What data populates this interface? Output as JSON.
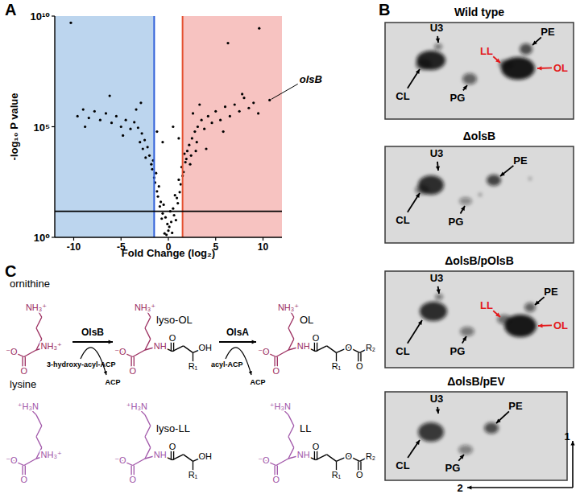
{
  "panel_labels": [
    "A",
    "B",
    "C"
  ],
  "chart_data": {
    "type": "scatter",
    "x_label": "Fold Change (log₂)",
    "y_label": "-log₁₀ P value",
    "log": "y",
    "grid": false,
    "color": "#000000",
    "marker": "circle",
    "xlim": [
      -12,
      12
    ],
    "ylim": [
      1,
      10000000000.0
    ],
    "xticks": [
      -10,
      -5,
      0,
      5,
      10
    ],
    "yticks": [
      {
        "value": 1,
        "label": "10⁰"
      },
      {
        "value": 100000.0,
        "label": "10⁵"
      },
      {
        "value": 10000000000.0,
        "label": "10¹⁰"
      }
    ],
    "thresholds": [
      {
        "axis": "x",
        "value": -1.5,
        "color": "#2f5fd8",
        "fill": "#bcd5ee"
      },
      {
        "axis": "x",
        "value": 1.5,
        "color": "#e4502f",
        "fill": "#f7c3c1"
      },
      {
        "axis": "y",
        "value": 15,
        "color": "#000000"
      }
    ],
    "annotations": [
      {
        "text": "olsB",
        "x": 10.7,
        "y": 1600000.0
      }
    ],
    "x": [
      0.1,
      -0.3,
      0.5,
      -0.8,
      0.9,
      -1.2,
      1.3,
      -1.5,
      1.6,
      -1.8,
      1.9,
      0.2,
      -0.5,
      0.7,
      -1.0,
      1.1,
      -1.3,
      1.4,
      -1.6,
      1.7,
      0.0,
      0.3,
      -0.1,
      -0.6,
      0.6,
      -0.9,
      1.0,
      -1.1,
      1.2,
      -1.4,
      1.5,
      -1.7,
      1.8,
      -2.0,
      2.0,
      0.4,
      -0.4,
      0.8,
      -0.7,
      -0.2,
      0.5,
      -0.6,
      1.1,
      -1.2,
      2.2,
      2.5,
      2.8,
      3.1,
      2.4,
      3.0,
      3.5,
      3.8,
      4.2,
      4.6,
      5.0,
      5.5,
      6.0,
      6.5,
      7.0,
      7.5,
      8.0,
      8.5,
      9.0,
      9.5,
      4.0,
      5.8,
      2.6,
      3.3,
      7.8,
      6.3,
      9.6,
      10.7,
      2.3,
      2.9,
      -2.2,
      -2.5,
      -2.8,
      -3.2,
      -3.6,
      -4.0,
      -4.5,
      -5.0,
      -5.5,
      -6.0,
      -6.6,
      -7.2,
      -7.8,
      -8.4,
      -9.0,
      -9.6,
      -3.0,
      -4.8,
      -2.4,
      -2.7,
      -3.4,
      -2.9,
      -10.3,
      -6.2,
      -8.8
    ],
    "values": [
      3,
      8,
      20,
      40,
      60,
      120,
      250,
      500,
      900,
      2000,
      3500,
      15,
      30,
      80,
      200,
      400,
      800,
      1500,
      3000,
      6000,
      2,
      5,
      4,
      12,
      10,
      25,
      35,
      70,
      110,
      300,
      600,
      1200,
      2500,
      5000,
      8000,
      1.6,
      1.5,
      6,
      7,
      1.3,
      100000.0,
      20000.0,
      30000.0,
      60000.0,
      15000.0,
      30000.0,
      60000.0,
      100000.0,
      5000.0,
      20000.0,
      200000.0,
      80000.0,
      300000.0,
      150000.0,
      500000.0,
      200000.0,
      800000.0,
      300000.0,
      1000000.0,
      500000.0,
      2000000.0,
      700000.0,
      1200000.0,
      400000.0,
      10000.0,
      60000.0,
      400000.0,
      1000000.0,
      3000000.0,
      600000000.0,
      2800000000.0,
      1600000.0,
      2000.0,
      8000.0,
      12000.0,
      25000.0,
      50000.0,
      90000.0,
      160000.0,
      80000.0,
      200000.0,
      100000.0,
      300000.0,
      150000.0,
      400000.0,
      200000.0,
      500000.0,
      250000.0,
      600000.0,
      300000.0,
      20000.0,
      40000.0,
      4000.0,
      10000.0,
      600000.0,
      1200000.0,
      5000000000.0,
      2500000.0,
      100000.0
    ]
  },
  "tlc": {
    "plates": [
      {
        "title": "Wild type",
        "labels": [
          {
            "text": "U3"
          },
          {
            "text": "LL",
            "color": "#e31a1c"
          },
          {
            "text": "PE"
          },
          {
            "text": "OL",
            "color": "#e31a1c"
          },
          {
            "text": "CL"
          },
          {
            "text": "PG"
          }
        ]
      },
      {
        "title": "ΔolsB",
        "labels": [
          {
            "text": "U3"
          },
          {
            "text": "PE"
          },
          {
            "text": "CL"
          },
          {
            "text": "PG"
          }
        ]
      },
      {
        "title": "ΔolsB/pOlsB",
        "labels": [
          {
            "text": "U3"
          },
          {
            "text": "LL",
            "color": "#e31a1c"
          },
          {
            "text": "PE"
          },
          {
            "text": "OL",
            "color": "#e31a1c"
          },
          {
            "text": "CL"
          },
          {
            "text": "PG"
          }
        ]
      },
      {
        "title": "ΔolsB/pEV",
        "labels": [
          {
            "text": "U3"
          },
          {
            "text": "PE"
          },
          {
            "text": "CL"
          },
          {
            "text": "PG"
          }
        ]
      }
    ],
    "directions": [
      "1",
      "2"
    ]
  },
  "scheme": {
    "molecules": [
      {
        "name": "ornithine",
        "color": "#9b2d5f",
        "atoms": [
          "NH₃⁺",
          "NH₃⁺",
          "⁻O",
          "O"
        ]
      },
      {
        "name": "lysine",
        "color": "#a055a8",
        "atoms": [
          "⁺H₃N",
          "NH₃⁺",
          "⁻O",
          "O"
        ]
      },
      {
        "name": "lyso-OL",
        "color": "#9b2d5f",
        "atoms": [
          "NH₃⁺",
          "NH",
          "⁻O",
          "O",
          "O",
          "OH",
          "R₁"
        ]
      },
      {
        "name": "lyso-LL",
        "color": "#a055a8",
        "atoms": [
          "⁺H₃N",
          "NH",
          "⁻O",
          "O",
          "O",
          "OH",
          "R₁"
        ]
      },
      {
        "name": "OL",
        "color": "#9b2d5f",
        "atoms": [
          "NH₃⁺",
          "NH",
          "⁻O",
          "O",
          "O",
          "O",
          "R₁",
          "O",
          "R₂"
        ]
      },
      {
        "name": "LL",
        "color": "#a055a8",
        "atoms": [
          "⁺H₃N",
          "NH",
          "⁻O",
          "O",
          "O",
          "O",
          "R₁",
          "O",
          "R₂"
        ]
      }
    ],
    "reactions": [
      {
        "enzyme": "OlsB",
        "donor": "3-hydroxy-acyl-ACP",
        "released": "ACP"
      },
      {
        "enzyme": "OlsA",
        "donor": "acyl-ACP",
        "released": "ACP"
      }
    ]
  }
}
